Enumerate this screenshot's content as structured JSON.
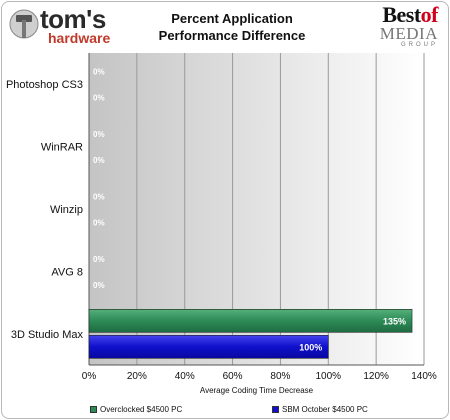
{
  "brand": {
    "name": "tom's",
    "sub": "hardware"
  },
  "badge": {
    "line1": "Best",
    "line1b": "of",
    "line2": "MEDIA",
    "line3": "GROUP"
  },
  "chart_data": {
    "type": "bar",
    "orientation": "horizontal",
    "title": "Percent Application Performance Difference",
    "title_lines": [
      "Percent Application",
      "Performance Difference"
    ],
    "xlabel": "Average  Coding Time Decrease",
    "ylabel": "",
    "xlim": [
      0,
      140
    ],
    "xticks": [
      0,
      20,
      40,
      60,
      80,
      100,
      120,
      140
    ],
    "xtick_labels": [
      "0%",
      "20%",
      "40%",
      "60%",
      "80%",
      "100%",
      "120%",
      "140%"
    ],
    "categories": [
      "Photoshop CS3",
      "WinRAR",
      "Winzip",
      "AVG 8",
      "3D Studio Max"
    ],
    "series": [
      {
        "name": "Overclocked $4500 PC",
        "color": "#2e8b57",
        "values": [
          0,
          0,
          0,
          0,
          135
        ],
        "labels": [
          "0%",
          "0%",
          "0%",
          "0%",
          "135%"
        ]
      },
      {
        "name": "SBM October $4500 PC",
        "color": "#1010cc",
        "values": [
          0,
          0,
          0,
          0,
          100
        ],
        "labels": [
          "0%",
          "0%",
          "0%",
          "0%",
          "100%"
        ]
      }
    ],
    "grid": true,
    "legend": "bottom"
  }
}
